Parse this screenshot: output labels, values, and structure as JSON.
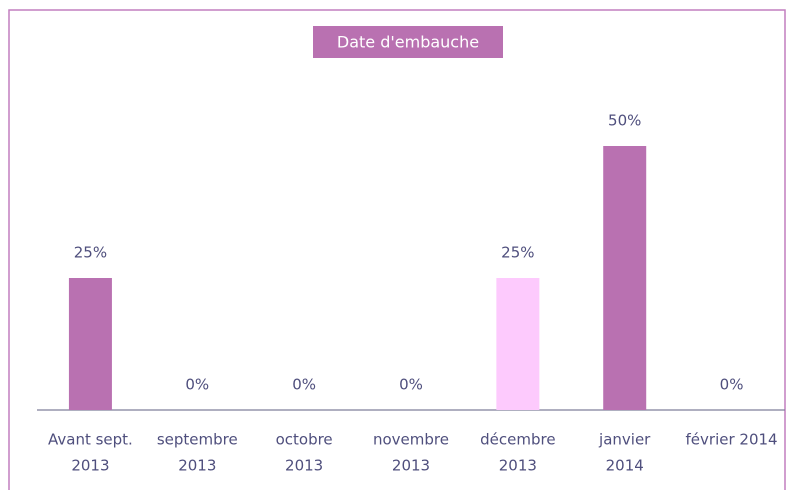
{
  "chart_data": {
    "type": "bar",
    "title": "Date d'embauche",
    "categories": [
      [
        "Avant sept.",
        "2013"
      ],
      [
        "septembre",
        "2013"
      ],
      [
        "octobre",
        "2013"
      ],
      [
        "novembre",
        "2013"
      ],
      [
        "décembre",
        "2013"
      ],
      [
        "janvier",
        "2014"
      ],
      [
        "février 2014"
      ]
    ],
    "values": [
      25,
      0,
      0,
      0,
      25,
      50,
      0
    ],
    "value_labels": [
      "25%",
      "0%",
      "0%",
      "0%",
      "25%",
      "50%",
      "0%"
    ],
    "colors": [
      "#b971b1",
      "#b971b1",
      "#b971b1",
      "#b971b1",
      "#fdcafd",
      "#b971b1",
      "#b971b1"
    ],
    "ylim": [
      0,
      50
    ]
  }
}
